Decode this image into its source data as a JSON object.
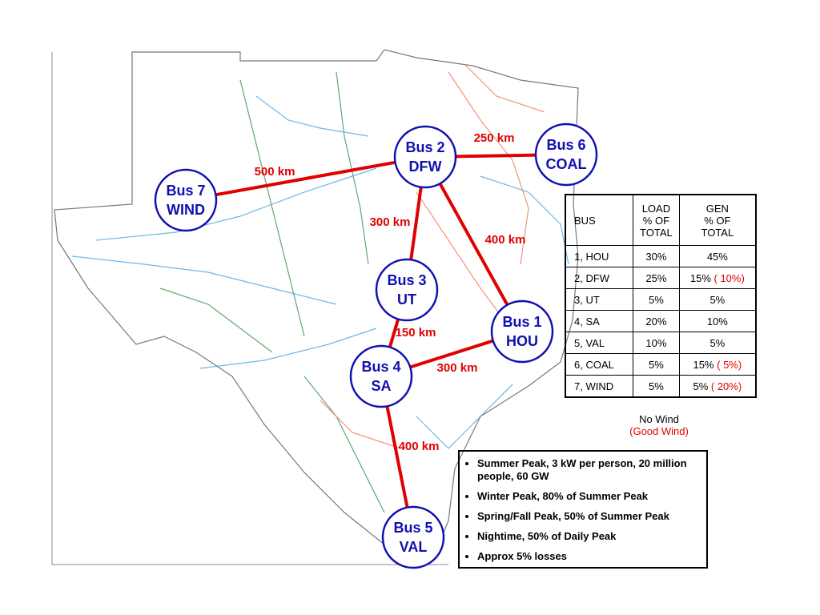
{
  "nodes": [
    {
      "line1": "Bus 1",
      "line2": "HOU"
    },
    {
      "line1": "Bus 2",
      "line2": "DFW"
    },
    {
      "line1": "Bus 3",
      "line2": "UT"
    },
    {
      "line1": "Bus 4",
      "line2": "SA"
    },
    {
      "line1": "Bus 5",
      "line2": "VAL"
    },
    {
      "line1": "Bus 6",
      "line2": "COAL"
    },
    {
      "line1": "Bus 7",
      "line2": "WIND"
    }
  ],
  "edges": [
    {
      "label": "250 km"
    },
    {
      "label": "500 km"
    },
    {
      "label": "300 km"
    },
    {
      "label": "400 km"
    },
    {
      "label": "150 km"
    },
    {
      "label": "300 km"
    },
    {
      "label": "400 km"
    }
  ],
  "table": {
    "header": {
      "bus": "BUS",
      "load": [
        "LOAD",
        "% OF",
        "TOTAL"
      ],
      "gen": [
        "GEN",
        "% OF",
        "TOTAL"
      ]
    },
    "rows": [
      {
        "bus": "1, HOU",
        "load": "30%",
        "gen": "45%"
      },
      {
        "bus": "2, DFW",
        "load": "25%",
        "gen": "15%",
        "gen_wind": "( 10%)"
      },
      {
        "bus": "3, UT",
        "load": "5%",
        "gen": "5%"
      },
      {
        "bus": "4, SA",
        "load": "20%",
        "gen": "10%"
      },
      {
        "bus": "5, VAL",
        "load": "10%",
        "gen": "5%"
      },
      {
        "bus": "6, COAL",
        "load": "5%",
        "gen": "15%",
        "gen_wind": "( 5%)"
      },
      {
        "bus": "7, WIND",
        "load": "5%",
        "gen": "5%",
        "gen_wind": "( 20%)"
      }
    ]
  },
  "legend": {
    "no_wind": "No Wind",
    "good_wind": "(Good Wind)"
  },
  "notes": [
    "Summer Peak, 3 kW per person, 20 million people, 60 GW",
    "Winter Peak, 80% of Summer Peak",
    "Spring/Fall Peak, 50% of Summer Peak",
    "Nightime, 50% of Daily Peak",
    "Approx 5% losses"
  ]
}
